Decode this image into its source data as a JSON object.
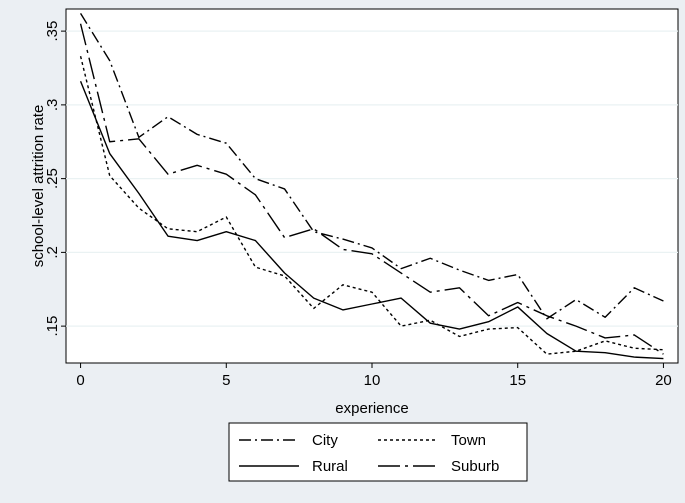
{
  "chart_data": {
    "type": "line",
    "title": "",
    "xlabel": "experience",
    "ylabel": "school-level attrition rate",
    "xlim": [
      -0.5,
      20.5
    ],
    "ylim": [
      0.125,
      0.365
    ],
    "xticks": [
      0,
      5,
      10,
      15,
      20
    ],
    "xtick_labels": [
      "0",
      "5",
      "10",
      "15",
      "20"
    ],
    "yticks": [
      0.15,
      0.2,
      0.25,
      0.3,
      0.35
    ],
    "ytick_labels": [
      ".15",
      ".2",
      ".25",
      ".3",
      ".35"
    ],
    "grid": "horizontal gridlines at y ticks",
    "legend_position": "bottom",
    "x": [
      0,
      1,
      2,
      3,
      4,
      5,
      6,
      7,
      8,
      9,
      10,
      11,
      12,
      13,
      14,
      15,
      16,
      17,
      18,
      19,
      20
    ],
    "series": [
      {
        "name": "City",
        "dash": "dash-dot",
        "values": [
          0.362,
          0.33,
          0.278,
          0.292,
          0.28,
          0.274,
          0.25,
          0.243,
          0.214,
          0.209,
          0.203,
          0.189,
          0.196,
          0.188,
          0.181,
          0.185,
          0.155,
          0.168,
          0.156,
          0.176,
          0.167
        ]
      },
      {
        "name": "Town",
        "dash": "short-dash",
        "values": [
          0.333,
          0.252,
          0.23,
          0.216,
          0.214,
          0.224,
          0.19,
          0.184,
          0.162,
          0.178,
          0.173,
          0.15,
          0.154,
          0.143,
          0.148,
          0.149,
          0.131,
          0.133,
          0.14,
          0.135,
          0.134
        ]
      },
      {
        "name": "Rural",
        "dash": "solid",
        "values": [
          0.316,
          0.267,
          0.24,
          0.211,
          0.208,
          0.214,
          0.208,
          0.186,
          0.169,
          0.161,
          0.165,
          0.169,
          0.152,
          0.148,
          0.153,
          0.163,
          0.145,
          0.133,
          0.132,
          0.129,
          0.128
        ]
      },
      {
        "name": "Suburb",
        "dash": "long-dash-dot",
        "values": [
          0.355,
          0.275,
          0.277,
          0.253,
          0.259,
          0.253,
          0.239,
          0.21,
          0.216,
          0.202,
          0.199,
          0.186,
          0.173,
          0.176,
          0.157,
          0.166,
          0.157,
          0.15,
          0.142,
          0.144,
          0.131
        ]
      }
    ]
  }
}
